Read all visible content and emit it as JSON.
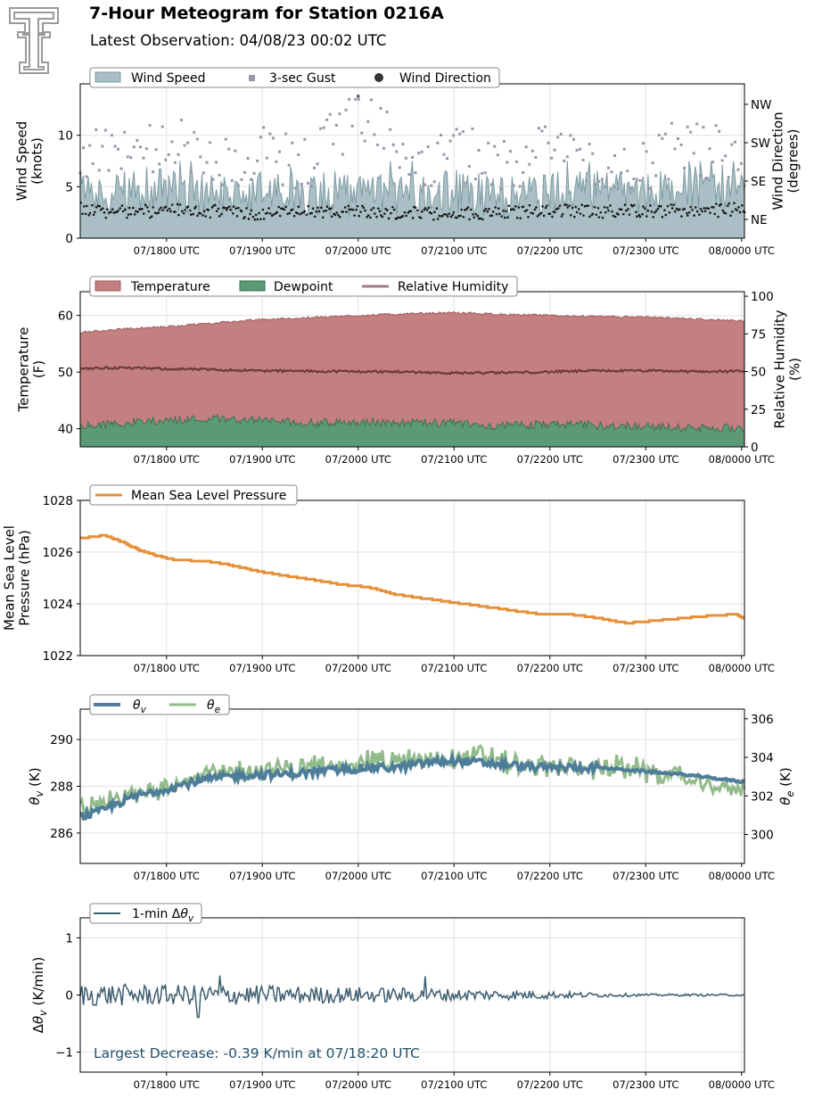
{
  "header": {
    "title": "7-Hour Meteogram for Station 0216A",
    "subtitle": "Latest Observation: 04/08/23 00:02 UTC",
    "logo_icon": "double-t-logo-icon"
  },
  "colors": {
    "wind_fill": "#a9bfc5",
    "wind_edge": "#7e9ca3",
    "gust": "#9a96aa",
    "direction": "#1a1a1a",
    "temperature": "#c47f80",
    "temperature_edge": "#9e5b5e",
    "dewpoint": "#5b9a74",
    "dewpoint_edge": "#3f6f52",
    "rh": "#6e3b3b",
    "pressure": "#e6903a",
    "theta_v": "#4e7d99",
    "theta_e": "#92bb8c",
    "delta": "#3d5e70",
    "annotation": "#23506b"
  },
  "chart_data": [
    {
      "type": "area",
      "name": "wind",
      "legend": [
        "Wind Speed",
        "3-sec Gust",
        "Wind Direction"
      ],
      "ylabel": "Wind Speed\n(knots)",
      "ylabel_right": "Wind Direction\n(degrees)",
      "xticks": [
        "07/1800 UTC",
        "07/1900 UTC",
        "07/2000 UTC",
        "07/2100 UTC",
        "07/2200 UTC",
        "07/2300 UTC",
        "08/0000 UTC"
      ],
      "yticks": [
        "0",
        "5",
        "10"
      ],
      "yticks_right": [
        "NE",
        "SE",
        "SW",
        "NW"
      ],
      "ylim": [
        0,
        15
      ],
      "grid": true,
      "x_hours": [
        17.1,
        24.0
      ],
      "wind_speed_knots": {
        "x_hours": [
          17.1,
          17.5,
          18.0,
          18.5,
          19.0,
          19.5,
          20.0,
          20.5,
          21.0,
          21.5,
          22.0,
          22.5,
          23.0,
          23.5,
          24.0
        ],
        "values": [
          4.5,
          4.2,
          4.8,
          4.0,
          4.6,
          4.3,
          4.0,
          4.4,
          4.5,
          3.8,
          4.5,
          4.6,
          4.3,
          4.9,
          4.6
        ]
      },
      "gust_knots": {
        "x_hours": [
          17.1,
          17.5,
          18.0,
          18.5,
          19.0,
          19.5,
          20.0,
          20.5,
          21.0,
          21.5,
          22.0,
          22.5,
          23.0,
          23.5,
          24.0
        ],
        "values": [
          8.5,
          9.0,
          10.0,
          8.5,
          9.0,
          8.5,
          13.8,
          8.5,
          9.5,
          8.5,
          9.5,
          9.0,
          8.5,
          10.0,
          9.0
        ]
      },
      "direction_index": {
        "x_hours": [
          17.1,
          17.5,
          18.0,
          18.5,
          19.0,
          19.5,
          20.0,
          20.5,
          21.0,
          21.5,
          22.0,
          22.5,
          23.0,
          23.5,
          24.0
        ],
        "values": [
          2.8,
          2.5,
          2.7,
          2.6,
          2.4,
          2.5,
          2.6,
          2.5,
          2.4,
          2.5,
          2.7,
          2.6,
          2.7,
          2.6,
          2.8
        ]
      }
    },
    {
      "type": "area",
      "name": "temperature",
      "legend": [
        "Temperature",
        "Dewpoint",
        "Relative Humidity"
      ],
      "ylabel": "Temperature\n(F)",
      "ylabel_right": "Relative Humidity\n(%)",
      "xticks": [
        "07/1800 UTC",
        "07/1900 UTC",
        "07/2000 UTC",
        "07/2100 UTC",
        "07/2200 UTC",
        "07/2300 UTC",
        "08/0000 UTC"
      ],
      "yticks": [
        "40",
        "50",
        "60"
      ],
      "yticks_right": [
        "0",
        "25",
        "50",
        "75",
        "100"
      ],
      "ylim": [
        36.8,
        64.2
      ],
      "ylim_right": [
        0,
        103
      ],
      "grid": true,
      "temperature_F": {
        "x_hours": [
          17.1,
          17.5,
          18.0,
          18.5,
          19.0,
          19.5,
          20.0,
          20.5,
          21.0,
          21.5,
          22.0,
          22.5,
          23.0,
          23.5,
          24.0
        ],
        "values": [
          57.0,
          57.6,
          58.0,
          58.7,
          59.3,
          59.6,
          60.0,
          60.3,
          60.5,
          60.2,
          60.0,
          59.8,
          59.7,
          59.4,
          59.0
        ]
      },
      "dewpoint_F": {
        "x_hours": [
          17.1,
          17.5,
          18.0,
          18.5,
          19.0,
          19.5,
          20.0,
          20.5,
          21.0,
          21.5,
          22.0,
          22.5,
          23.0,
          23.5,
          24.0
        ],
        "values": [
          40.3,
          41.0,
          41.5,
          41.8,
          41.5,
          41.0,
          41.2,
          41.0,
          41.0,
          40.5,
          40.8,
          40.6,
          40.5,
          40.0,
          40.2
        ]
      },
      "relative_humidity_pct": {
        "x_hours": [
          17.1,
          17.5,
          18.0,
          18.5,
          19.0,
          19.5,
          20.0,
          20.5,
          21.0,
          21.5,
          22.0,
          22.5,
          23.0,
          23.5,
          24.0
        ],
        "values": [
          52.0,
          52.5,
          51.8,
          51.2,
          50.5,
          50.2,
          50.0,
          49.8,
          49.0,
          49.2,
          49.8,
          50.5,
          50.5,
          50.0,
          50.2
        ]
      }
    },
    {
      "type": "line",
      "name": "pressure",
      "legend": [
        "Mean Sea Level Pressure"
      ],
      "ylabel": "Mean Sea Level\nPressure (hPa)",
      "xticks": [
        "07/1800 UTC",
        "07/1900 UTC",
        "07/2000 UTC",
        "07/2100 UTC",
        "07/2200 UTC",
        "07/2300 UTC",
        "08/0000 UTC"
      ],
      "yticks": [
        "1022",
        "1024",
        "1026",
        "1028"
      ],
      "ylim": [
        1022,
        1028
      ],
      "grid": true,
      "series": [
        {
          "name": "Mean Sea Level Pressure",
          "x_hours": [
            17.1,
            17.25,
            17.35,
            17.5,
            17.7,
            17.9,
            18.1,
            18.4,
            18.6,
            18.9,
            19.2,
            19.5,
            19.8,
            20.1,
            20.4,
            20.7,
            21.0,
            21.3,
            21.6,
            21.9,
            22.2,
            22.5,
            22.8,
            23.1,
            23.4,
            23.7,
            23.95,
            24.0
          ],
          "values": [
            1026.55,
            1026.6,
            1026.65,
            1026.45,
            1026.1,
            1025.85,
            1025.7,
            1025.65,
            1025.55,
            1025.3,
            1025.1,
            1024.95,
            1024.75,
            1024.65,
            1024.35,
            1024.2,
            1024.05,
            1023.9,
            1023.75,
            1023.6,
            1023.6,
            1023.45,
            1023.25,
            1023.35,
            1023.45,
            1023.55,
            1023.6,
            1023.45
          ]
        }
      ]
    },
    {
      "type": "line",
      "name": "theta",
      "legend": [
        "θv",
        "θe"
      ],
      "ylabel": "θv (K)",
      "ylabel_right": "θe (K)",
      "xticks": [
        "07/1800 UTC",
        "07/1900 UTC",
        "07/2000 UTC",
        "07/2100 UTC",
        "07/2200 UTC",
        "07/2300 UTC",
        "08/0000 UTC"
      ],
      "yticks": [
        "286",
        "288",
        "290"
      ],
      "yticks_right": [
        "300",
        "302",
        "304",
        "306"
      ],
      "ylim": [
        284.7,
        291.3
      ],
      "ylim_right": [
        298.5,
        306.5
      ],
      "grid": true,
      "series": [
        {
          "name": "θv",
          "x_hours": [
            17.1,
            17.3,
            17.5,
            17.7,
            18.0,
            18.3,
            18.6,
            18.9,
            19.2,
            19.5,
            19.8,
            20.1,
            20.4,
            20.7,
            21.0,
            21.3,
            21.6,
            21.9,
            22.2,
            22.5,
            22.8,
            23.1,
            23.4,
            23.7,
            24.0
          ],
          "values": [
            286.7,
            286.9,
            287.3,
            287.6,
            287.9,
            288.2,
            288.4,
            288.5,
            288.5,
            288.6,
            288.7,
            288.8,
            288.8,
            289.0,
            289.1,
            289.0,
            288.9,
            288.8,
            288.8,
            288.8,
            288.7,
            288.6,
            288.5,
            288.35,
            288.2
          ]
        },
        {
          "name": "θe",
          "x_hours": [
            17.1,
            17.3,
            17.5,
            17.7,
            18.0,
            18.3,
            18.6,
            18.9,
            19.2,
            19.5,
            19.8,
            20.1,
            20.4,
            20.7,
            21.0,
            21.3,
            21.6,
            21.9,
            22.2,
            22.5,
            22.8,
            23.1,
            23.4,
            23.7,
            24.0
          ],
          "values": [
            301.2,
            301.4,
            301.8,
            302.1,
            302.6,
            303.0,
            303.2,
            303.3,
            303.3,
            303.5,
            303.6,
            303.9,
            303.7,
            303.9,
            304.0,
            304.1,
            303.6,
            303.5,
            303.5,
            303.5,
            303.4,
            303.2,
            302.9,
            302.5,
            302.3
          ]
        }
      ]
    },
    {
      "type": "line",
      "name": "delta",
      "legend": [
        "1-min Δθv"
      ],
      "ylabel": "Δθv (K/min)",
      "xticks": [
        "07/1800 UTC",
        "07/1900 UTC",
        "07/2000 UTC",
        "07/2100 UTC",
        "07/2200 UTC",
        "07/2300 UTC",
        "08/0000 UTC"
      ],
      "yticks": [
        "−1",
        "0",
        "1"
      ],
      "ylim": [
        -1.35,
        1.35
      ],
      "grid": true,
      "annotation": "Largest Decrease: -0.39 K/min at 07/18:20 UTC",
      "largest_decrease": {
        "value": -0.39,
        "time": "07/18:20 UTC"
      },
      "amplitude_envelope": {
        "x_hours": [
          17.1,
          18.0,
          19.0,
          20.0,
          21.0,
          22.0,
          22.5,
          23.0,
          24.0
        ],
        "values": [
          0.2,
          0.18,
          0.17,
          0.14,
          0.11,
          0.07,
          0.04,
          0.02,
          0.02
        ]
      }
    }
  ]
}
